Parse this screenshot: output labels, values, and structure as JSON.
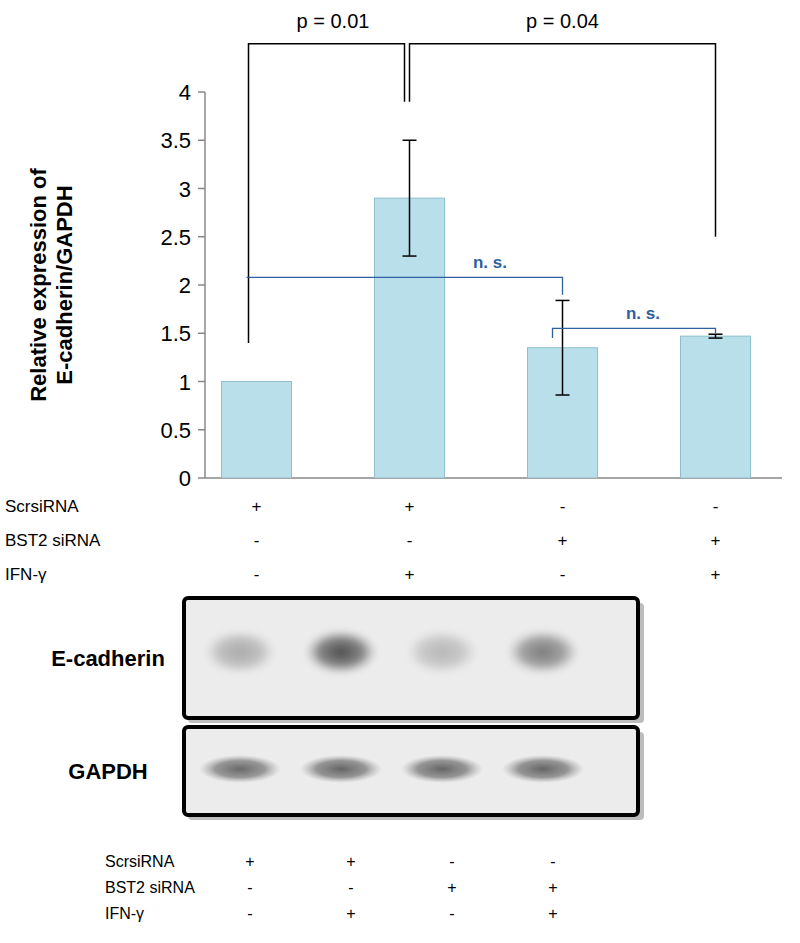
{
  "chart_data": {
    "type": "bar",
    "y_label": [
      "Relative expression of",
      "E-cadherin/GAPDH"
    ],
    "categories": [
      null,
      null,
      null,
      null
    ],
    "values": [
      1.0,
      2.9,
      1.35,
      1.47
    ],
    "errors": [
      0,
      0.6,
      0.49,
      0.02
    ],
    "color": "#b9e0ea",
    "ylim": [
      0,
      4
    ],
    "yticks": [
      0,
      0.5,
      1,
      1.5,
      2,
      2.5,
      3,
      3.5,
      4
    ],
    "grid": false,
    "conditions": [
      {
        "label": "ScrsiRNA",
        "values": [
          "+",
          "+",
          "-",
          "-"
        ]
      },
      {
        "label": "BST2 siRNA",
        "values": [
          "-",
          "-",
          "+",
          "+"
        ]
      },
      {
        "label": "IFN-γ",
        "values": [
          "-",
          "+",
          "-",
          "+"
        ]
      }
    ],
    "annotations": [
      {
        "text": "p = 0.01",
        "from": 0,
        "to": 1,
        "y": 4.5,
        "from_y": 1.4,
        "to_y": 3.9,
        "color": "#000000"
      },
      {
        "text": "p = 0.04",
        "from": 1,
        "to": 3,
        "y": 4.5,
        "from_y": 3.9,
        "to_y": 2.5,
        "color": "#000000"
      },
      {
        "text": "n. s.",
        "from": 0,
        "to": 2,
        "y": 2.08,
        "from_y": 2.08,
        "to_y": 1.9,
        "color": "#2e5f9e"
      },
      {
        "text": "n. s.",
        "from": 2,
        "to": 3,
        "y": 1.55,
        "from_y": 1.45,
        "to_y": 1.5,
        "color": "#2e5f9e"
      }
    ]
  },
  "blot": {
    "rows": [
      {
        "label": "E-cadherin",
        "intensity": [
          0.35,
          0.85,
          0.28,
          0.6
        ]
      },
      {
        "label": "GAPDH",
        "intensity": [
          0.7,
          0.72,
          0.72,
          0.72
        ]
      }
    ],
    "conditions": [
      {
        "label": "ScrsiRNA",
        "values": [
          "+",
          "+",
          "-",
          "-"
        ]
      },
      {
        "label": "BST2 siRNA",
        "values": [
          "-",
          "-",
          "+",
          "+"
        ]
      },
      {
        "label": "IFN-γ",
        "values": [
          "-",
          "+",
          "-",
          "+"
        ]
      }
    ]
  }
}
